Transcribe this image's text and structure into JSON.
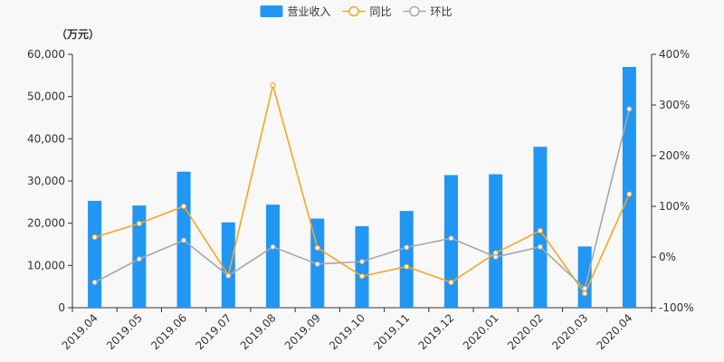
{
  "chart_data": {
    "type": "bar",
    "categories": [
      "2019.04",
      "2019.05",
      "2019.06",
      "2019.07",
      "2019.08",
      "2019.09",
      "2019.10",
      "2019.11",
      "2019.12",
      "2020.01",
      "2020.02",
      "2020.03",
      "2020.04"
    ],
    "unit_label": "（万元）",
    "legend": {
      "position": "top-center"
    },
    "ylim_left": [
      0,
      60000
    ],
    "ylim_right": [
      -100,
      400
    ],
    "left_ticks": [
      0,
      10000,
      20000,
      30000,
      40000,
      50000,
      60000
    ],
    "left_tick_labels": [
      "0",
      "10,000",
      "20,000",
      "30,000",
      "40,000",
      "50,000",
      "60,000"
    ],
    "right_ticks": [
      -100,
      0,
      100,
      200,
      300,
      400
    ],
    "right_tick_labels": [
      "-100%",
      "0%",
      "100%",
      "200%",
      "300%",
      "400%"
    ],
    "series": [
      {
        "name": "营业收入",
        "kind": "bar",
        "axis": "left",
        "color": "#2196f3",
        "values": [
          25300,
          24200,
          32200,
          20200,
          24400,
          21100,
          19300,
          22900,
          31400,
          31600,
          38100,
          14500,
          57000
        ]
      },
      {
        "name": "同比",
        "kind": "line",
        "axis": "right",
        "color": "#f5a623",
        "values": [
          39,
          66,
          100,
          -36,
          339,
          18,
          -38,
          -19,
          -50,
          8,
          52,
          -72,
          124
        ]
      },
      {
        "name": "环比",
        "kind": "line",
        "axis": "right",
        "color": "#a8a8a8",
        "values": [
          -50,
          -4,
          33,
          -37,
          20,
          -14,
          -9,
          19,
          37,
          0,
          20,
          -62,
          292
        ]
      }
    ]
  }
}
